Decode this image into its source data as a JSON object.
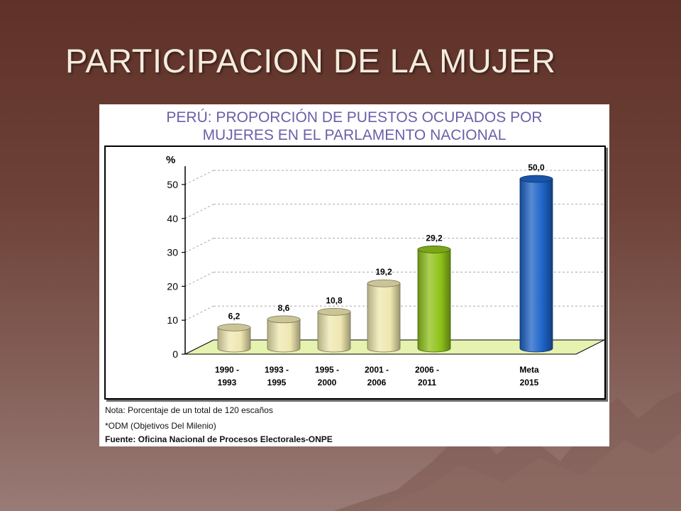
{
  "slide": {
    "title": "PARTICIPACION DE LA MUJER"
  },
  "chart_data": {
    "type": "bar",
    "title": [
      "PERÚ: PROPORCIÓN DE PUESTOS OCUPADOS POR",
      "MUJERES EN EL PARLAMENTO NACIONAL"
    ],
    "ylabel": "%",
    "ylim": [
      0,
      55
    ],
    "yticks": [
      0,
      10,
      20,
      30,
      40,
      50
    ],
    "grid": true,
    "categories": [
      [
        "1990 -",
        "1993"
      ],
      [
        "1993 -",
        "1995"
      ],
      [
        "1995 -",
        "2000"
      ],
      [
        "2001 -",
        "2006"
      ],
      [
        "2006 -",
        "2011"
      ],
      [
        "Meta",
        "2015"
      ]
    ],
    "values": [
      6.2,
      8.6,
      10.8,
      19.2,
      29.2,
      50.0
    ],
    "value_labels": [
      "6,2",
      "8,6",
      "10,8",
      "19,2",
      "29,2",
      "50,0"
    ],
    "colors": [
      "#efe7b0",
      "#efe7b0",
      "#efe7b0",
      "#efe7b0",
      "#8fc21a",
      "#1d63c7"
    ]
  },
  "notes": {
    "line1": "Nota: Porcentaje de un total de 120 escaños",
    "line2": "*ODM (Objetivos Del Milenio)",
    "line3": "Fuente: Oficina Nacional de Procesos Electorales-ONPE"
  },
  "colors": {
    "background_top": "#5f3128",
    "background_bottom": "#997b76",
    "title_text": "#f4ecde",
    "chart_title_text": "#6b5fa8",
    "floor": "#e6f2b0"
  }
}
